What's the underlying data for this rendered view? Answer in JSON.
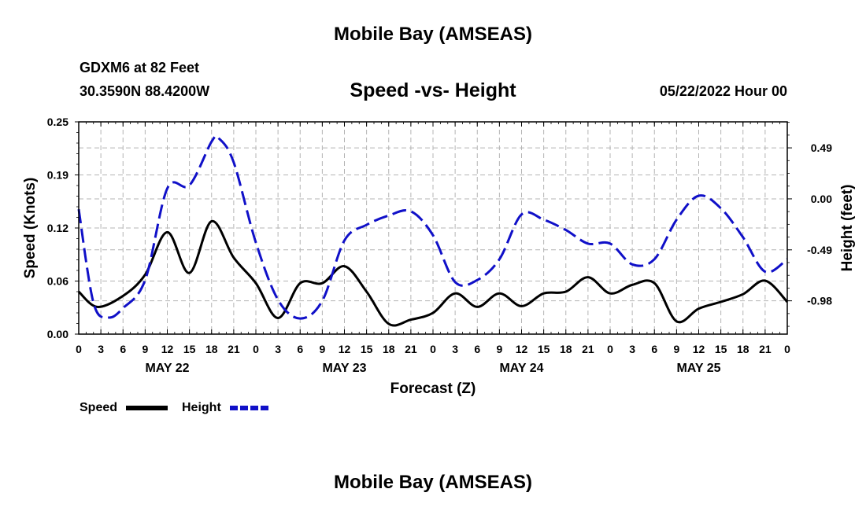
{
  "header": {
    "title": "Mobile Bay (AMSEAS)",
    "station": "GDXM6 at 82 Feet",
    "coords": "30.3590N  88.4200W",
    "date": "05/22/2022 Hour 00"
  },
  "footer": {
    "title": "Mobile Bay (AMSEAS)"
  },
  "legend": {
    "speed": "Speed",
    "height": "Height"
  },
  "colors": {
    "speed": "#000000",
    "height": "#1010c8",
    "grid": "#b4b4b4"
  },
  "chart_data": {
    "type": "line",
    "title": "Speed -vs- Height",
    "xlabel": "Forecast (Z)",
    "ylabel_left": "Speed (Knots)",
    "ylabel_right": "Height (feet)",
    "x_hours_range": [
      0,
      96
    ],
    "hour_ticks": [
      "0",
      "3",
      "6",
      "9",
      "12",
      "15",
      "18",
      "21",
      "0",
      "3",
      "6",
      "9",
      "12",
      "15",
      "18",
      "21",
      "0",
      "3",
      "6",
      "9",
      "12",
      "15",
      "18",
      "21",
      "0",
      "3",
      "6",
      "9",
      "12",
      "15",
      "18",
      "21",
      "0"
    ],
    "day_labels": [
      {
        "label": "MAY 22",
        "hour": 12
      },
      {
        "label": "MAY 23",
        "hour": 36
      },
      {
        "label": "MAY 24",
        "hour": 60
      },
      {
        "label": "MAY 25",
        "hour": 84
      }
    ],
    "ylim_left": [
      0.0,
      0.25
    ],
    "yticks_left": [
      {
        "value": 0.0,
        "label": "0.00"
      },
      {
        "value": 0.0625,
        "label": "0.06"
      },
      {
        "value": 0.125,
        "label": "0.12"
      },
      {
        "value": 0.1875,
        "label": "0.19"
      },
      {
        "value": 0.25,
        "label": "0.25"
      }
    ],
    "ylim_right": [
      -1.3,
      0.74
    ],
    "yticks_right": [
      {
        "value": 0.49,
        "label": "0.49"
      },
      {
        "value": 0.0,
        "label": "0.00"
      },
      {
        "value": -0.49,
        "label": "-0.49"
      },
      {
        "value": -0.98,
        "label": "-0.98"
      }
    ],
    "grid": true,
    "series": [
      {
        "name": "Speed",
        "axis": "left",
        "style": "solid",
        "x": [
          0,
          2.5,
          6,
          9,
          12,
          15,
          18,
          21,
          24,
          27,
          30,
          33,
          36,
          39,
          42,
          45,
          48,
          51,
          54,
          57,
          60,
          63,
          66,
          69,
          72,
          75,
          78,
          81,
          84,
          87,
          90,
          93,
          96
        ],
        "values": [
          0.05,
          0.032,
          0.045,
          0.07,
          0.12,
          0.072,
          0.133,
          0.09,
          0.06,
          0.019,
          0.06,
          0.06,
          0.08,
          0.05,
          0.012,
          0.017,
          0.025,
          0.048,
          0.032,
          0.048,
          0.033,
          0.048,
          0.05,
          0.067,
          0.048,
          0.058,
          0.06,
          0.015,
          0.03,
          0.038,
          0.047,
          0.063,
          0.038
        ]
      },
      {
        "name": "Height",
        "axis": "right",
        "style": "dashed",
        "x": [
          0,
          2,
          4,
          6,
          9,
          12,
          15,
          18,
          19,
          21,
          24,
          27,
          30,
          33,
          36,
          39,
          42,
          45,
          48,
          51,
          54,
          57,
          60,
          63,
          66,
          69,
          72,
          75,
          78,
          81,
          84,
          87,
          90,
          93,
          96
        ],
        "values": [
          -0.1,
          -1.0,
          -1.14,
          -1.05,
          -0.78,
          0.1,
          0.13,
          0.55,
          0.58,
          0.35,
          -0.42,
          -0.97,
          -1.15,
          -0.98,
          -0.4,
          -0.25,
          -0.16,
          -0.12,
          -0.35,
          -0.8,
          -0.78,
          -0.58,
          -0.15,
          -0.2,
          -0.3,
          -0.43,
          -0.43,
          -0.63,
          -0.58,
          -0.2,
          0.03,
          -0.09,
          -0.37,
          -0.7,
          -0.58
        ]
      }
    ]
  }
}
